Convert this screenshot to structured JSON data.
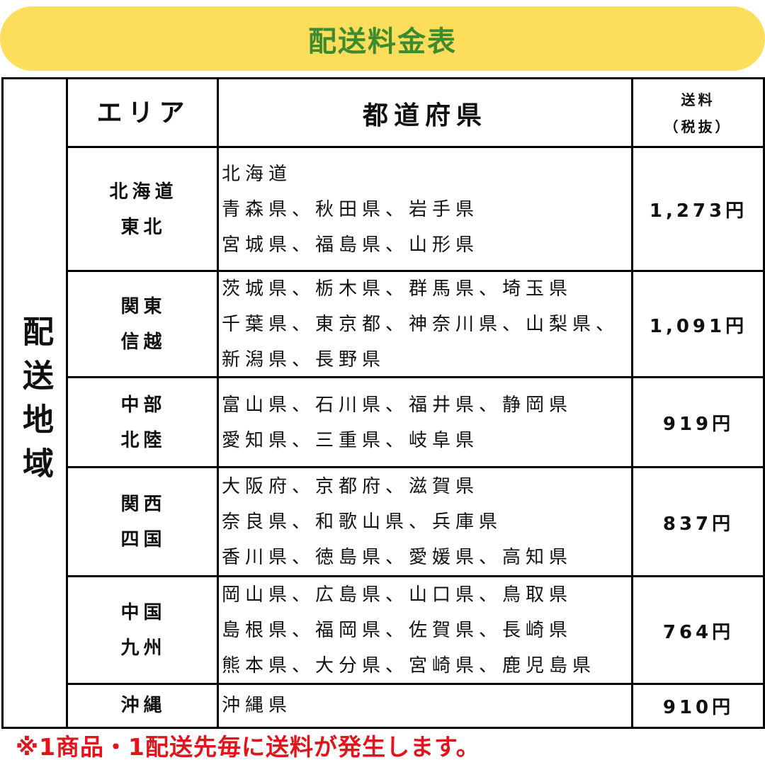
{
  "title": "配送料金表",
  "region_label": "配送地域",
  "header": {
    "area": "エリア",
    "prefecture": "都道府県",
    "fee_line1": "送料",
    "fee_line2": "（税抜）"
  },
  "rows": [
    {
      "area": "北海道\n東北",
      "prefectures": [
        "北海道",
        "青森県、秋田県、岩手県",
        "宮城県、福島県、山形県"
      ],
      "fee": "1,273円"
    },
    {
      "area": "関東\n信越",
      "prefectures": [
        "茨城県、栃木県、群馬県、埼玉県",
        "千葉県、東京都、神奈川県、山梨県、",
        "新潟県、長野県"
      ],
      "fee": "1,091円"
    },
    {
      "area": "中部\n北陸",
      "prefectures": [
        "富山県、石川県、福井県、静岡県",
        "愛知県、三重県、岐阜県"
      ],
      "fee": "919円"
    },
    {
      "area": "関西\n四国",
      "prefectures": [
        "大阪府、京都府、滋賀県",
        "奈良県、和歌山県、兵庫県",
        "香川県、徳島県、愛媛県、高知県"
      ],
      "fee": "837円"
    },
    {
      "area": "中国\n九州",
      "prefectures": [
        "岡山県、広島県、山口県、鳥取県",
        "島根県、福岡県、佐賀県、長崎県",
        "熊本県、大分県、宮崎県、鹿児島県"
      ],
      "fee": "764円"
    },
    {
      "area": "沖縄",
      "prefectures": [
        "沖縄県"
      ],
      "fee": "910円"
    }
  ],
  "note": "※1商品・1配送先毎に送料が発生します。",
  "colors": {
    "banner": "#fddd5c",
    "title": "#3d8b2f",
    "note": "#e0141a"
  }
}
